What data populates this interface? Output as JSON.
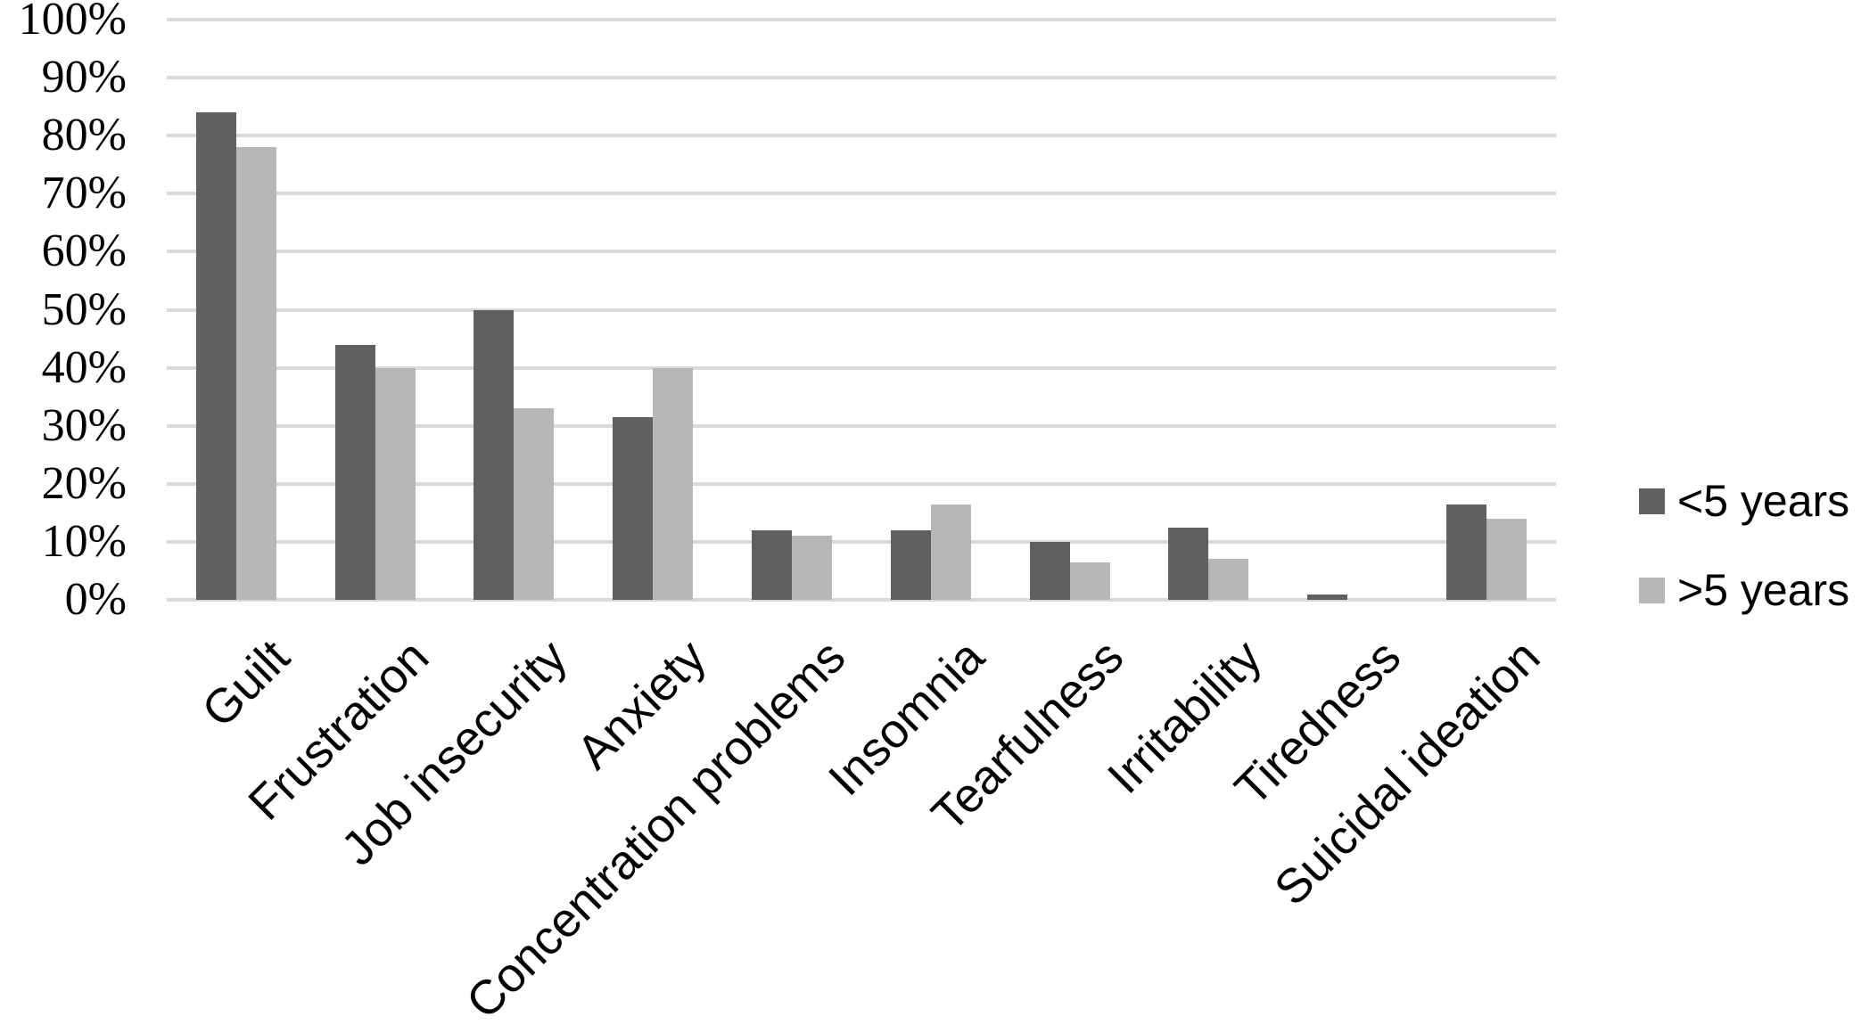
{
  "chart_data": {
    "type": "bar",
    "title": "",
    "xlabel": "",
    "ylabel": "",
    "categories": [
      "Guilt",
      "Frustration",
      "Job insecurity",
      "Anxiety",
      "Concentration problems",
      "Insomnia",
      "Tearfulness",
      "Irritability",
      "Tiredness",
      "Suicidal ideation"
    ],
    "series": [
      {
        "name": "<5 years",
        "color": "#606060",
        "values": [
          84,
          44,
          50,
          31.5,
          12,
          12,
          10,
          12.5,
          1,
          16.5
        ]
      },
      {
        "name": ">5 years",
        "color": "#b7b7b7",
        "values": [
          78,
          40,
          33,
          40,
          11,
          16.5,
          6.5,
          7,
          0,
          14
        ]
      }
    ],
    "ylim": [
      0,
      100
    ],
    "ytick_step": 10,
    "ytick_labels": [
      "0%",
      "10%",
      "20%",
      "30%",
      "40%",
      "50%",
      "60%",
      "70%",
      "80%",
      "90%",
      "100%"
    ],
    "grid": "horizontal",
    "gridline_color": "#d9d9d9",
    "background_color": "#ffffff",
    "legend_position": "right"
  }
}
